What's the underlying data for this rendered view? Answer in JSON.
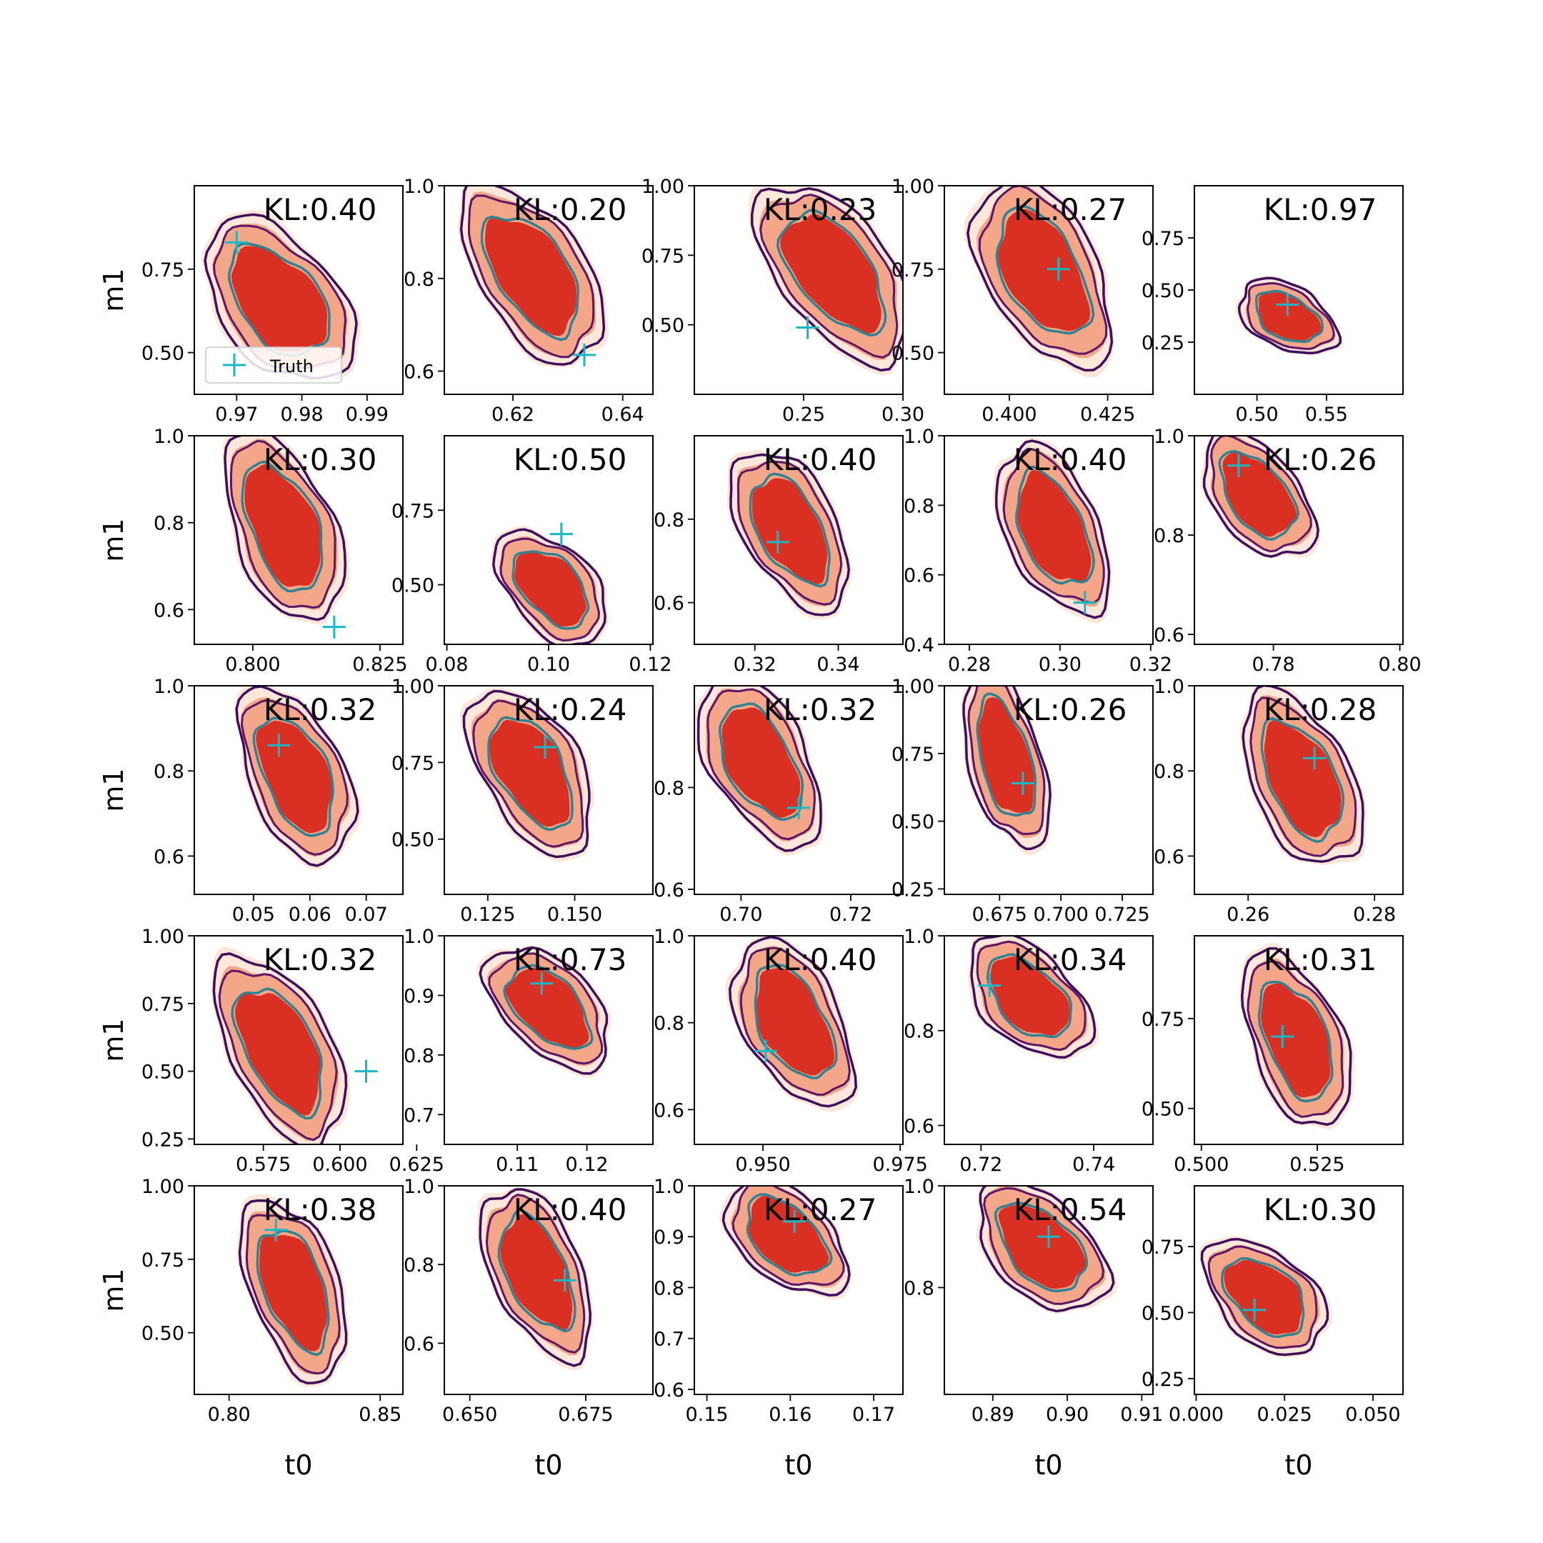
{
  "colors": {
    "contour_outer": "#3f0f5c",
    "contour_mid": "#5d1666",
    "contour_teal": "#2e8291",
    "fill_light": "#fde6da",
    "fill_mid": "#f4a788",
    "fill_dark": "#da2f23",
    "truth": "#1ab8c4"
  },
  "chart_data": {
    "type": "contour-grid",
    "legend": {
      "label": "Truth",
      "placement": "lower-left of first panel"
    },
    "xlabel": "t0",
    "ylabel": "m1",
    "panels": [
      {
        "kl": "KL:0.40",
        "xticks": [
          "0.97",
          "0.98",
          "0.99"
        ],
        "yticks": [
          "0.75",
          "0.50"
        ],
        "xlim": [
          0.9635,
          0.9955
        ],
        "ylim": [
          0.375,
          1.0
        ],
        "truth": [
          0.97,
          0.83
        ],
        "center": [
          0.9765,
          0.655
        ],
        "spread": [
          0.008,
          0.19
        ],
        "tilt": -0.55
      },
      {
        "kl": "KL:0.20",
        "xticks": [
          "0.62",
          "0.64"
        ],
        "yticks": [
          "1.0",
          "0.8",
          "0.6"
        ],
        "xlim": [
          0.6075,
          0.6455
        ],
        "ylim": [
          0.55,
          1.0
        ],
        "truth": [
          0.633,
          0.635
        ],
        "center": [
          0.6235,
          0.81
        ],
        "spread": [
          0.0085,
          0.15
        ],
        "tilt": -0.72
      },
      {
        "kl": "KL:0.23",
        "xticks": [
          "0.25",
          "0.30"
        ],
        "yticks": [
          "1.00",
          "0.75",
          "0.50"
        ],
        "xlim": [
          0.195,
          0.3
        ],
        "ylim": [
          0.25,
          1.0
        ],
        "truth": [
          0.252,
          0.49
        ],
        "center": [
          0.265,
          0.69
        ],
        "spread": [
          0.025,
          0.25
        ],
        "tilt": -0.75
      },
      {
        "kl": "KL:0.27",
        "xticks": [
          "0.400",
          "0.425"
        ],
        "yticks": [
          "1.00",
          "0.75",
          "0.50"
        ],
        "xlim": [
          0.3835,
          0.4365
        ],
        "ylim": [
          0.375,
          1.0
        ],
        "truth": [
          0.4125,
          0.75
        ],
        "center": [
          0.4085,
          0.74
        ],
        "spread": [
          0.012,
          0.22
        ],
        "tilt": -0.6
      },
      {
        "kl": "KL:0.97",
        "xticks": [
          "0.50",
          "0.55"
        ],
        "yticks": [
          "0.75",
          "0.50",
          "0.25"
        ],
        "xlim": [
          0.455,
          0.605
        ],
        "ylim": [
          -0.0,
          1.0
        ],
        "truth": [
          0.522,
          0.43
        ],
        "center": [
          0.522,
          0.37
        ],
        "spread": [
          0.025,
          0.14
        ],
        "tilt": -0.5
      },
      {
        "kl": "KL:0.30",
        "xticks": [
          "0.800",
          "0.825"
        ],
        "yticks": [
          "1.0",
          "0.8",
          "0.6"
        ],
        "xlim": [
          0.7885,
          0.8295
        ],
        "ylim": [
          0.52,
          1.0
        ],
        "truth": [
          0.816,
          0.56
        ],
        "center": [
          0.806,
          0.79
        ],
        "spread": [
          0.008,
          0.17
        ],
        "tilt": -0.6
      },
      {
        "kl": "KL:0.50",
        "xticks": [
          "0.08",
          "0.10",
          "0.12"
        ],
        "yticks": [
          "0.75",
          "0.50"
        ],
        "xlim": [
          0.0795,
          0.1205
        ],
        "ylim": [
          0.3,
          1.0
        ],
        "truth": [
          0.1025,
          0.67
        ],
        "center": [
          0.1005,
          0.49
        ],
        "spread": [
          0.0075,
          0.15
        ],
        "tilt": -0.6
      },
      {
        "kl": "KL:0.40",
        "xticks": [
          "0.32",
          "0.34"
        ],
        "yticks": [
          "0.8",
          "0.6"
        ],
        "xlim": [
          0.3055,
          0.3555
        ],
        "ylim": [
          0.5,
          1.0
        ],
        "truth": [
          0.3255,
          0.745
        ],
        "center": [
          0.3285,
          0.775
        ],
        "spread": [
          0.0095,
          0.15
        ],
        "tilt": -0.65
      },
      {
        "kl": "KL:0.40",
        "xticks": [
          "0.28",
          "0.30",
          "0.32"
        ],
        "yticks": [
          "1.0",
          "0.8",
          "0.6",
          "0.4"
        ],
        "xlim": [
          0.2745,
          0.3205
        ],
        "ylim": [
          0.4,
          1.0
        ],
        "truth": [
          0.3055,
          0.52
        ],
        "center": [
          0.2985,
          0.73
        ],
        "spread": [
          0.0085,
          0.19
        ],
        "tilt": -0.6
      },
      {
        "kl": "KL:0.26",
        "xticks": [
          "0.78",
          "0.80"
        ],
        "yticks": [
          "1.0",
          "0.8",
          "0.6"
        ],
        "xlim": [
          0.7675,
          0.8005
        ],
        "ylim": [
          0.58,
          1.0
        ],
        "truth": [
          0.7745,
          0.94
        ],
        "center": [
          0.7775,
          0.88
        ],
        "spread": [
          0.006,
          0.1
        ],
        "tilt": -0.62
      },
      {
        "kl": "KL:0.32",
        "xticks": [
          "0.05",
          "0.06",
          "0.07"
        ],
        "yticks": [
          "1.0",
          "0.8",
          "0.6"
        ],
        "xlim": [
          0.0395,
          0.0765
        ],
        "ylim": [
          0.51,
          1.0
        ],
        "truth": [
          0.0545,
          0.86
        ],
        "center": [
          0.0575,
          0.79
        ],
        "spread": [
          0.007,
          0.16
        ],
        "tilt": -0.6
      },
      {
        "kl": "KL:0.24",
        "xticks": [
          "0.125",
          "0.150"
        ],
        "yticks": [
          "1.00",
          "0.75",
          "0.50"
        ],
        "xlim": [
          0.1125,
          0.1725
        ],
        "ylim": [
          0.32,
          1.0
        ],
        "truth": [
          0.1415,
          0.8
        ],
        "center": [
          0.1375,
          0.72
        ],
        "spread": [
          0.012,
          0.21
        ],
        "tilt": -0.65
      },
      {
        "kl": "KL:0.32",
        "xticks": [
          "0.70",
          "0.72"
        ],
        "yticks": [
          "0.8",
          "0.6"
        ],
        "xlim": [
          0.6915,
          0.7295
        ],
        "ylim": [
          0.59,
          1.0
        ],
        "truth": [
          0.7105,
          0.76
        ],
        "center": [
          0.7035,
          0.85
        ],
        "spread": [
          0.0075,
          0.13
        ],
        "tilt": -0.65
      },
      {
        "kl": "KL:0.26",
        "xticks": [
          "0.675",
          "0.700",
          "0.725"
        ],
        "yticks": [
          "1.00",
          "0.75",
          "0.50",
          "0.25"
        ],
        "xlim": [
          0.6525,
          0.7375
        ],
        "ylim": [
          0.23,
          1.0
        ],
        "truth": [
          0.6845,
          0.64
        ],
        "center": [
          0.6775,
          0.73
        ],
        "spread": [
          0.012,
          0.26
        ],
        "tilt": -0.6
      },
      {
        "kl": "KL:0.28",
        "xticks": [
          "0.26",
          "0.28"
        ],
        "yticks": [
          "1.0",
          "0.8",
          "0.6"
        ],
        "xlim": [
          0.2515,
          0.2845
        ],
        "ylim": [
          0.51,
          1.0
        ],
        "truth": [
          0.2705,
          0.83
        ],
        "center": [
          0.2685,
          0.78
        ],
        "spread": [
          0.0065,
          0.16
        ],
        "tilt": -0.6
      },
      {
        "kl": "KL:0.32",
        "xticks": [
          "0.575",
          "0.600",
          "0.625"
        ],
        "yticks": [
          "1.00",
          "0.75",
          "0.50",
          "0.25"
        ],
        "xlim": [
          0.5525,
          0.6205
        ],
        "ylim": [
          0.23,
          1.0
        ],
        "truth": [
          0.6085,
          0.5
        ],
        "center": [
          0.5805,
          0.58
        ],
        "spread": [
          0.014,
          0.27
        ],
        "tilt": -0.7
      },
      {
        "kl": "KL:0.73",
        "xticks": [
          "0.11",
          "0.12"
        ],
        "yticks": [
          "1.0",
          "0.9",
          "0.8",
          "0.7"
        ],
        "xlim": [
          0.0995,
          0.1295
        ],
        "ylim": [
          0.65,
          1.0
        ],
        "truth": [
          0.1135,
          0.92
        ],
        "center": [
          0.1145,
          0.88
        ],
        "spread": [
          0.006,
          0.08
        ],
        "tilt": -0.65
      },
      {
        "kl": "KL:0.40",
        "xticks": [
          "0.950",
          "0.975"
        ],
        "yticks": [
          "1.0",
          "0.8",
          "0.6"
        ],
        "xlim": [
          0.9375,
          0.9755
        ],
        "ylim": [
          0.52,
          1.0
        ],
        "truth": [
          0.9505,
          0.735
        ],
        "center": [
          0.9555,
          0.8
        ],
        "spread": [
          0.0075,
          0.15
        ],
        "tilt": -0.6
      },
      {
        "kl": "KL:0.34",
        "xticks": [
          "0.72",
          "0.74"
        ],
        "yticks": [
          "1.0",
          "0.8",
          "0.6"
        ],
        "xlim": [
          0.7135,
          0.7505
        ],
        "ylim": [
          0.56,
          1.0
        ],
        "truth": [
          0.7215,
          0.895
        ],
        "center": [
          0.7285,
          0.87
        ],
        "spread": [
          0.0075,
          0.1
        ],
        "tilt": -0.6
      },
      {
        "kl": "KL:0.31",
        "xticks": [
          "0.500",
          "0.525"
        ],
        "yticks": [
          "0.75",
          "0.50"
        ],
        "xlim": [
          0.4985,
          0.5435
        ],
        "ylim": [
          0.4,
          0.98
        ],
        "truth": [
          0.5175,
          0.7
        ],
        "center": [
          0.5205,
          0.69
        ],
        "spread": [
          0.008,
          0.19
        ],
        "tilt": -0.6
      },
      {
        "kl": "KL:0.38",
        "xticks": [
          "0.80",
          "0.85"
        ],
        "yticks": [
          "1.00",
          "0.75",
          "0.50"
        ],
        "xlim": [
          0.7885,
          0.8575
        ],
        "ylim": [
          0.29,
          1.0
        ],
        "truth": [
          0.8155,
          0.85
        ],
        "center": [
          0.8215,
          0.65
        ],
        "spread": [
          0.012,
          0.24
        ],
        "tilt": -0.6
      },
      {
        "kl": "KL:0.40",
        "xticks": [
          "0.650",
          "0.675"
        ],
        "yticks": [
          "1.0",
          "0.8",
          "0.6"
        ],
        "xlim": [
          0.6445,
          0.6895
        ],
        "ylim": [
          0.47,
          1.0
        ],
        "truth": [
          0.6705,
          0.76
        ],
        "center": [
          0.6645,
          0.78
        ],
        "spread": [
          0.008,
          0.17
        ],
        "tilt": -0.65
      },
      {
        "kl": "KL:0.27",
        "xticks": [
          "0.15",
          "0.16",
          "0.17"
        ],
        "yticks": [
          "1.0",
          "0.9",
          "0.8",
          "0.7",
          "0.6"
        ],
        "xlim": [
          0.1485,
          0.1735
        ],
        "ylim": [
          0.59,
          1.0
        ],
        "truth": [
          0.1605,
          0.93
        ],
        "center": [
          0.1595,
          0.9
        ],
        "spread": [
          0.005,
          0.09
        ],
        "tilt": -0.6
      },
      {
        "kl": "KL:0.54",
        "xticks": [
          "0.89",
          "0.90",
          "0.91"
        ],
        "yticks": [
          "1.0",
          "0.8"
        ],
        "xlim": [
          0.8835,
          0.9115
        ],
        "ylim": [
          0.59,
          1.0
        ],
        "truth": [
          0.8975,
          0.9
        ],
        "center": [
          0.8965,
          0.88
        ],
        "spread": [
          0.006,
          0.1
        ],
        "tilt": -0.6
      },
      {
        "kl": "KL:0.30",
        "xticks": [
          "0.000",
          "0.025",
          "0.050"
        ],
        "yticks": [
          "0.75",
          "0.50",
          "0.25"
        ],
        "xlim": [
          -0.0005,
          0.0585
        ],
        "ylim": [
          0.19,
          0.98
        ],
        "truth": [
          0.0165,
          0.51
        ],
        "center": [
          0.0195,
          0.56
        ],
        "spread": [
          0.012,
          0.17
        ],
        "tilt": -0.55
      }
    ]
  }
}
